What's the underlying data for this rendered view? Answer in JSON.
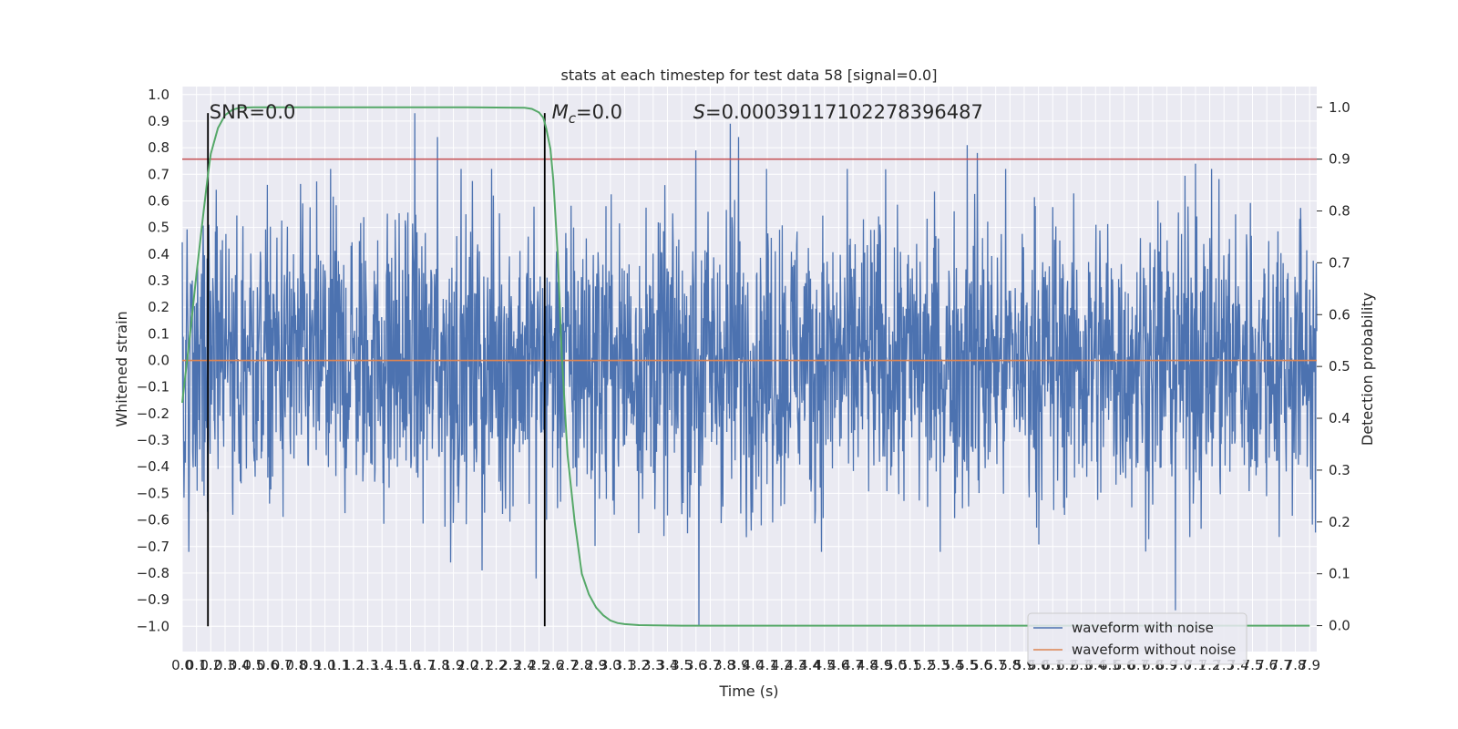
{
  "chart_data": {
    "type": "line",
    "title": "stats at each timestep for test data 58 [signal=0.0]",
    "xlabel": "Time (s)",
    "ylabel": "Whitened strain",
    "ylabel_right": "Detection probability",
    "xlim": [
      0.0,
      7.95
    ],
    "ylim": [
      -1.095,
      1.03
    ],
    "ylim_right": [
      -0.05,
      1.04
    ],
    "grid": true,
    "legend_position": "lower-right",
    "x_ticks": [
      "0.0",
      "0.1",
      "0.2",
      "0.3",
      "0.4",
      "0.5",
      "0.6",
      "0.7",
      "0.8",
      "0.9",
      "1.0",
      "1.1",
      "1.2",
      "1.3",
      "1.4",
      "1.5",
      "1.6",
      "1.7",
      "1.8",
      "1.9",
      "2.0",
      "2.1",
      "2.2",
      "2.3",
      "2.4",
      "2.5",
      "2.6",
      "2.7",
      "2.8",
      "2.9",
      "3.0",
      "3.1",
      "3.2",
      "3.3",
      "3.4",
      "3.5",
      "3.6",
      "3.7",
      "3.8",
      "3.9",
      "4.0",
      "4.1",
      "4.2",
      "4.3",
      "4.4",
      "4.5",
      "4.6",
      "4.7",
      "4.8",
      "4.9",
      "5.0",
      "5.1",
      "5.2",
      "5.3",
      "5.4",
      "5.5",
      "5.6",
      "5.7",
      "5.8",
      "5.9",
      "6.0",
      "6.1",
      "6.2",
      "6.3",
      "6.4",
      "6.5",
      "6.6",
      "6.7",
      "6.8",
      "6.9",
      "7.0",
      "7.1",
      "7.2",
      "7.3",
      "7.4",
      "7.5",
      "7.6",
      "7.7",
      "7.8",
      "7.9"
    ],
    "y_ticks": [
      "1.0",
      "0.9",
      "0.8",
      "0.7",
      "0.6",
      "0.5",
      "0.4",
      "0.3",
      "0.2",
      "0.1",
      "0.0",
      "−0.1",
      "−0.2",
      "−0.3",
      "−0.4",
      "−0.5",
      "−0.6",
      "−0.7",
      "−0.8",
      "−0.9",
      "−1.0"
    ],
    "y_right_ticks": [
      "1.0",
      "0.9",
      "0.8",
      "0.7",
      "0.6",
      "0.5",
      "0.4",
      "0.3",
      "0.2",
      "0.1",
      "0.0"
    ],
    "series": [
      {
        "name": "waveform with noise",
        "color": "#4c72b0",
        "kind": "noise",
        "typical_amplitude": 0.45,
        "spikes_up": [
          [
            1.63,
            0.93
          ],
          [
            1.79,
            0.84
          ],
          [
            3.84,
            0.89
          ],
          [
            3.9,
            0.84
          ],
          [
            3.6,
            0.79
          ],
          [
            5.5,
            0.81
          ],
          [
            5.57,
            0.78
          ],
          [
            7.1,
            0.74
          ]
        ],
        "spikes_down": [
          [
            3.62,
            -1.0
          ],
          [
            6.96,
            -0.94
          ],
          [
            2.48,
            -0.82
          ],
          [
            2.1,
            -0.79
          ],
          [
            1.88,
            -0.76
          ]
        ]
      },
      {
        "name": "waveform without noise",
        "color": "#dd8452",
        "kind": "flat",
        "value": 0.0
      },
      {
        "name": "",
        "color": "#55a868",
        "axis": "right",
        "x": [
          0.0,
          0.05,
          0.1,
          0.15,
          0.18,
          0.2,
          0.25,
          0.3,
          0.35,
          0.4,
          0.5,
          0.6,
          1.0,
          1.5,
          2.0,
          2.4,
          2.45,
          2.5,
          2.53,
          2.55,
          2.58,
          2.6,
          2.63,
          2.66,
          2.7,
          2.75,
          2.8,
          2.85,
          2.9,
          2.95,
          3.0,
          3.05,
          3.1,
          3.2,
          3.3,
          3.5,
          4.0,
          5.0,
          6.0,
          7.0,
          7.9
        ],
        "y": [
          0.43,
          0.55,
          0.68,
          0.8,
          0.87,
          0.91,
          0.96,
          0.985,
          0.995,
          0.999,
          1.0,
          1.0,
          1.0,
          1.0,
          1.0,
          0.999,
          0.997,
          0.99,
          0.98,
          0.96,
          0.92,
          0.86,
          0.72,
          0.52,
          0.33,
          0.2,
          0.1,
          0.06,
          0.035,
          0.02,
          0.01,
          0.005,
          0.003,
          0.001,
          0.0005,
          0.0,
          0.0,
          0.0,
          0.0,
          0.0,
          0.0
        ]
      }
    ],
    "threshold": {
      "value": 0.9,
      "axis": "right",
      "color": "#c44e52"
    },
    "vlines": [
      0.18,
      2.54
    ],
    "annotations": [
      {
        "text": "SNR=0.0",
        "x": 0.19,
        "y": 0.93
      },
      {
        "text": "M_c=0.0",
        "x": 2.59,
        "y": 0.93
      },
      {
        "text": "S=0.00039117102278396487",
        "x": 3.58,
        "y": 0.93
      }
    ]
  }
}
